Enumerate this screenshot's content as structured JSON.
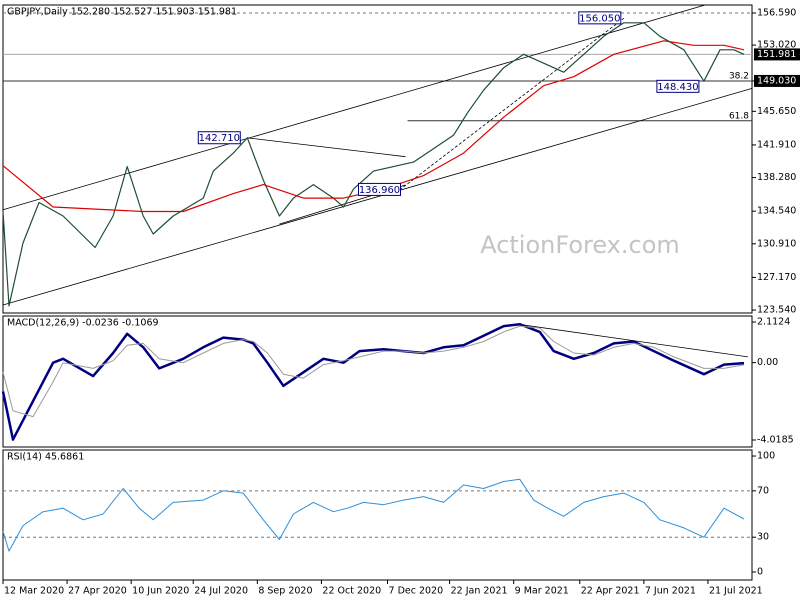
{
  "chart_data": [
    {
      "type": "line",
      "title": "GBPJPY,Daily  152.280 152.527 151.903 151.981",
      "watermark": "ActionForex.com",
      "xlim": [
        0,
        374
      ],
      "ylim": [
        123.21,
        157.48
      ],
      "yticks": [
        {
          "value": 123.54,
          "label": "123.540"
        },
        {
          "value": 127.17,
          "label": "127.170"
        },
        {
          "value": 130.91,
          "label": "130.910"
        },
        {
          "value": 134.54,
          "label": "134.540"
        },
        {
          "value": 138.28,
          "label": "138.280"
        },
        {
          "value": 141.91,
          "label": "141.910"
        },
        {
          "value": 145.65,
          "label": "145.650"
        },
        {
          "value": 149.03,
          "label": "149.030",
          "boxed": true
        },
        {
          "value": 153.02,
          "label": "153.020"
        },
        {
          "value": 156.59,
          "label": "156.590"
        }
      ],
      "levels": [
        156.59,
        149.03
      ],
      "last_price": 151.981,
      "series": [
        {
          "color": "#1d4f33",
          "x": [
            0,
            3,
            10,
            18,
            30,
            46,
            55,
            62,
            70,
            75,
            85,
            100,
            105,
            115,
            122,
            130,
            138,
            145,
            155,
            165,
            170,
            175,
            185,
            195,
            205,
            215,
            225,
            232,
            240,
            250,
            260,
            270,
            280,
            290,
            300,
            310,
            320,
            328,
            340,
            350,
            358,
            365,
            370
          ],
          "values": [
            134.5,
            124,
            131,
            135.5,
            134,
            130.5,
            134,
            139.5,
            134,
            132,
            134,
            136,
            139,
            141,
            142.7,
            138,
            134,
            136,
            137.5,
            136,
            135,
            137,
            139,
            139.5,
            140,
            141.5,
            143,
            145.5,
            148,
            150.5,
            152,
            151,
            150,
            152,
            154,
            155.5,
            155.5,
            154,
            152.5,
            149,
            152.5,
            152.5,
            151.981
          ]
        },
        {
          "color": "#e00000",
          "x": [
            0,
            25,
            70,
            90,
            115,
            130,
            150,
            170,
            190,
            210,
            230,
            250,
            270,
            285,
            305,
            330,
            345,
            360,
            370
          ],
          "values": [
            139.6,
            135,
            134.5,
            134.5,
            136.5,
            137.5,
            136,
            136,
            137,
            138.5,
            141,
            145,
            148.5,
            149.5,
            152,
            153.5,
            153,
            153,
            152.5
          ]
        }
      ],
      "trend_lines": [
        {
          "x": [
            0,
            351
          ],
          "y": [
            134.7,
            157.5
          ],
          "style": "solid"
        },
        {
          "x": [
            0,
            374
          ],
          "y": [
            124.1,
            148.2
          ],
          "style": "solid"
        },
        {
          "x": [
            122,
            201
          ],
          "y": [
            142.7,
            140.6
          ],
          "style": "solid"
        },
        {
          "x": [
            138,
            201
          ],
          "y": [
            133.1,
            137.45
          ],
          "style": "solid"
        },
        {
          "x": [
            198,
            310
          ],
          "y": [
            136.9,
            156
          ],
          "style": "dashed"
        }
      ],
      "fib_levels": [
        {
          "label": "38.2",
          "value": 149.03,
          "x_start": 0
        },
        {
          "label": "61.8",
          "value": 144.6,
          "x_start": 202
        }
      ],
      "annotations": [
        {
          "label": "156.050",
          "x": 298,
          "y": 156.05
        },
        {
          "label": "148.430",
          "x": 337,
          "y": 148.43
        },
        {
          "label": "142.710",
          "x": 108,
          "y": 142.71
        },
        {
          "label": "136.960",
          "x": 188,
          "y": 136.96
        }
      ]
    },
    {
      "type": "line",
      "title": "MACD(12,26,9) -0.0236 -0.1069",
      "xlim": [
        0,
        374
      ],
      "ylim": [
        -4.382,
        2.424
      ],
      "yticks": [
        -4.0185,
        {
          "value": 0,
          "label": "0.00"
        },
        2.1124
      ],
      "series": [
        {
          "color": "#000080",
          "width": 2.5,
          "x": [
            0,
            5,
            15,
            25,
            30,
            45,
            55,
            62,
            70,
            78,
            90,
            100,
            110,
            120,
            125,
            132,
            140,
            150,
            160,
            170,
            178,
            190,
            200,
            210,
            220,
            230,
            240,
            250,
            258,
            268,
            275,
            285,
            295,
            305,
            315,
            325,
            335,
            350,
            360,
            370
          ],
          "values": [
            -1.5,
            -4,
            -2,
            0,
            0.2,
            -0.7,
            0.5,
            1.5,
            0.8,
            -0.3,
            0.2,
            0.8,
            1.3,
            1.2,
            1.0,
            0,
            -1.2,
            -0.5,
            0.2,
            0,
            0.6,
            0.7,
            0.6,
            0.5,
            0.8,
            0.9,
            1.4,
            1.9,
            2.0,
            1.6,
            0.6,
            0.2,
            0.5,
            1.0,
            1.1,
            0.6,
            0.1,
            -0.6,
            -0.1,
            -0.0236
          ]
        },
        {
          "color": "#9a9a9a",
          "width": 1,
          "x": [
            0,
            5,
            15,
            25,
            30,
            45,
            55,
            62,
            70,
            78,
            90,
            100,
            110,
            120,
            125,
            132,
            140,
            150,
            160,
            170,
            178,
            190,
            200,
            210,
            220,
            230,
            240,
            250,
            258,
            268,
            275,
            285,
            295,
            305,
            315,
            325,
            335,
            350,
            360,
            370
          ],
          "values": [
            -0.5,
            -2.5,
            -2.8,
            -1,
            0,
            -0.3,
            0.1,
            0.9,
            1.0,
            0.2,
            0,
            0.5,
            1.0,
            1.2,
            1.1,
            0.5,
            -0.6,
            -0.8,
            -0.1,
            0.1,
            0.3,
            0.6,
            0.6,
            0.5,
            0.6,
            0.8,
            1.1,
            1.6,
            1.9,
            1.8,
            1.1,
            0.5,
            0.4,
            0.8,
            1.0,
            0.8,
            0.3,
            -0.3,
            -0.3,
            -0.1069
          ]
        }
      ],
      "trend_lines": [
        {
          "x": [
            257,
            372
          ],
          "y": [
            2.0,
            0.3
          ],
          "style": "solid"
        }
      ]
    },
    {
      "type": "line",
      "title": "RSI(14) 45.6861",
      "xlim": [
        0,
        374
      ],
      "ylim": [
        -6.9,
        105.2
      ],
      "yticks": [
        0,
        30,
        70,
        100
      ],
      "levels": [
        70,
        30
      ],
      "series": [
        {
          "color": "#2f8fd8",
          "width": 1,
          "x": [
            0,
            3,
            10,
            20,
            30,
            40,
            50,
            60,
            68,
            75,
            85,
            100,
            110,
            120,
            130,
            138,
            145,
            155,
            165,
            172,
            180,
            190,
            200,
            210,
            220,
            230,
            240,
            250,
            258,
            265,
            272,
            280,
            290,
            300,
            310,
            320,
            328,
            340,
            350,
            360,
            370
          ],
          "values": [
            35,
            18,
            40,
            52,
            55,
            45,
            50,
            72,
            55,
            45,
            60,
            62,
            70,
            68,
            45,
            28,
            50,
            60,
            52,
            55,
            60,
            58,
            62,
            65,
            60,
            75,
            72,
            78,
            80,
            62,
            55,
            48,
            60,
            65,
            68,
            60,
            45,
            38,
            30,
            55,
            45.6861
          ]
        }
      ],
      "xticks": [
        {
          "value": 0,
          "label": "12 Mar 2020"
        },
        {
          "value": 32,
          "label": "27 Apr 2020"
        },
        {
          "value": 64,
          "label": "10 Jun 2020"
        },
        {
          "value": 95,
          "label": "24 Jul 2020"
        },
        {
          "value": 127,
          "label": "8 Sep 2020"
        },
        {
          "value": 159,
          "label": "22 Oct 2020"
        },
        {
          "value": 192,
          "label": "7 Dec 2020"
        },
        {
          "value": 223,
          "label": "22 Jan 2021"
        },
        {
          "value": 255,
          "label": "9 Mar 2021"
        },
        {
          "value": 288,
          "label": "22 Apr 2021"
        },
        {
          "value": 320,
          "label": "7 Jun 2021"
        },
        {
          "value": 352,
          "label": "21 Jul 2021"
        }
      ]
    }
  ]
}
